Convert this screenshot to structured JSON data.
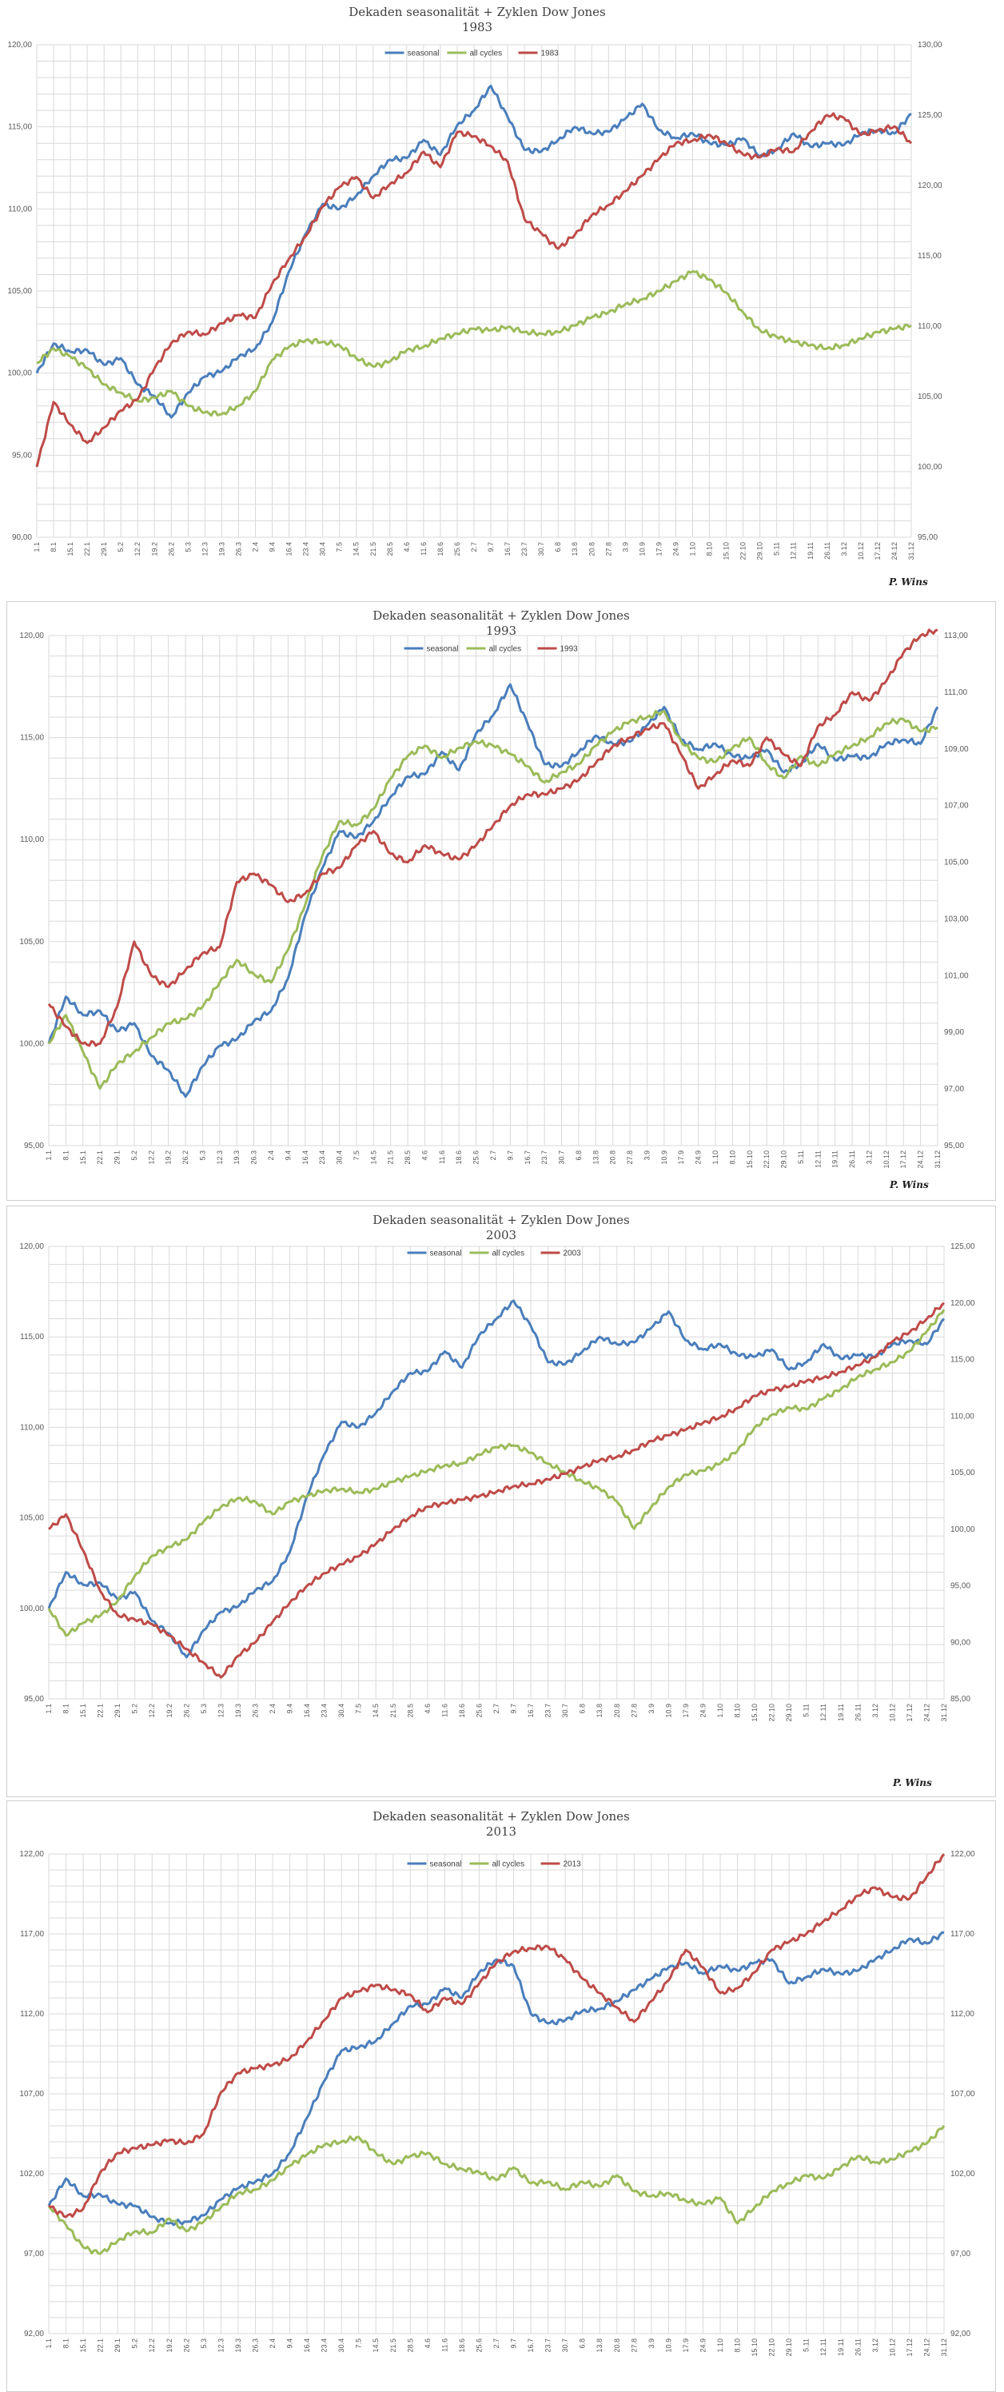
{
  "chart_data": [
    {
      "type": "line",
      "title": "Dekaden seasonalität + Zyklen Dow Jones",
      "subtitle": "1983",
      "credit": "P. Wins",
      "x": [
        "1.1",
        "8.1",
        "15.1",
        "22.1",
        "29.1",
        "5.2",
        "12.2",
        "19.2",
        "26.2",
        "5.3",
        "12.3",
        "19.3",
        "26.3",
        "2.4",
        "9.4",
        "16.4",
        "23.4",
        "30.4",
        "7.5",
        "14.5",
        "21.5",
        "28.5",
        "4.6",
        "11.6",
        "18.6",
        "25.6",
        "2.7",
        "9.7",
        "16.7",
        "23.7",
        "30.7",
        "6.8",
        "13.8",
        "20.8",
        "27.8",
        "3.9",
        "10.9",
        "17.9",
        "24.9",
        "1.10",
        "8.10",
        "15.10",
        "22.10",
        "29.10",
        "5.11",
        "12.11",
        "19.11",
        "26.11",
        "3.12",
        "10.12",
        "17.12",
        "24.12",
        "31.12"
      ],
      "ylim": [
        90,
        120
      ],
      "yticks": [
        "90,00",
        "95,00",
        "100,00",
        "105,00",
        "110,00",
        "115,00",
        "120,00"
      ],
      "y2lim": [
        95,
        130
      ],
      "y2ticks": [
        "95,00",
        "100,00",
        "105,00",
        "110,00",
        "115,00",
        "120,00",
        "125,00",
        "130,00"
      ],
      "legend": "top-center",
      "series": [
        {
          "name": "seasonal",
          "axis": "left",
          "color": "#4a7ebb",
          "values": [
            100.0,
            101.8,
            101.3,
            101.4,
            100.5,
            100.9,
            99.3,
            98.6,
            97.3,
            98.8,
            99.8,
            100.1,
            101.0,
            101.5,
            103.1,
            106.2,
            108.5,
            110.3,
            110.0,
            110.8,
            112.0,
            113.0,
            113.1,
            114.2,
            113.3,
            115.1,
            116.0,
            117.5,
            115.6,
            113.6,
            113.5,
            114.2,
            115.0,
            114.6,
            114.7,
            115.5,
            116.4,
            114.8,
            114.3,
            114.6,
            114.0,
            113.9,
            114.3,
            113.2,
            113.6,
            114.6,
            113.8,
            114.0,
            113.9,
            114.6,
            114.8,
            114.6,
            115.8
          ]
        },
        {
          "name": "all cycles",
          "axis": "left",
          "color": "#9bbb59",
          "values": [
            100.6,
            101.5,
            101.0,
            100.3,
            99.3,
            98.8,
            98.3,
            98.5,
            98.9,
            98.0,
            97.6,
            97.5,
            98.0,
            98.9,
            100.8,
            101.6,
            102.0,
            101.9,
            101.7,
            100.9,
            100.4,
            100.7,
            101.4,
            101.6,
            102.1,
            102.4,
            102.7,
            102.6,
            102.8,
            102.5,
            102.4,
            102.5,
            102.9,
            103.4,
            103.7,
            104.2,
            104.5,
            105.0,
            105.6,
            106.2,
            105.7,
            104.9,
            103.7,
            102.6,
            102.2,
            101.9,
            101.7,
            101.5,
            101.7,
            102.1,
            102.5,
            102.7,
            102.9
          ]
        },
        {
          "name": "1983",
          "axis": "right",
          "color": "#be4b48",
          "values": [
            100.0,
            104.6,
            103.0,
            101.7,
            102.8,
            104.0,
            104.8,
            107.0,
            108.8,
            109.6,
            109.4,
            110.2,
            110.8,
            110.6,
            113.0,
            114.8,
            116.4,
            118.5,
            119.9,
            120.6,
            119.1,
            120.1,
            120.9,
            122.4,
            121.3,
            123.8,
            123.5,
            122.8,
            121.7,
            117.6,
            116.6,
            115.5,
            116.5,
            117.9,
            118.6,
            119.6,
            120.7,
            121.9,
            123.0,
            123.2,
            123.6,
            123.0,
            122.2,
            122.0,
            122.6,
            122.4,
            123.8,
            125.0,
            124.8,
            123.6,
            123.9,
            124.2,
            123.0
          ]
        }
      ]
    },
    {
      "type": "line",
      "title": "Dekaden seasonalität + Zyklen Dow Jones",
      "subtitle": "1993",
      "credit": "P. Wins",
      "x": [
        "1.1",
        "8.1",
        "15.1",
        "22.1",
        "29.1",
        "5.2",
        "12.2",
        "19.2",
        "26.2",
        "5.3",
        "12.3",
        "19.3",
        "26.3",
        "2.4",
        "9.4",
        "16.4",
        "23.4",
        "30.4",
        "7.5",
        "14.5",
        "21.5",
        "28.5",
        "4.6",
        "11.6",
        "18.6",
        "25.6",
        "2.7",
        "9.7",
        "16.7",
        "23.7",
        "30.7",
        "6.8",
        "13.8",
        "20.8",
        "27.8",
        "3.9",
        "10.9",
        "17.9",
        "24.9",
        "1.10",
        "8.10",
        "15.10",
        "22.10",
        "29.10",
        "5.11",
        "12.11",
        "19.11",
        "26.11",
        "3.12",
        "10.12",
        "17.12",
        "24.12",
        "31.12"
      ],
      "ylim": [
        95,
        120
      ],
      "yticks": [
        "95,00",
        "100,00",
        "105,00",
        "110,00",
        "115,00",
        "120,00"
      ],
      "y2lim": [
        95,
        113
      ],
      "y2ticks": [
        "95,00",
        "97,00",
        "99,00",
        "101,00",
        "103,00",
        "105,00",
        "107,00",
        "109,00",
        "111,00",
        "113,00"
      ],
      "legend": "top-center",
      "series": [
        {
          "name": "seasonal",
          "axis": "left",
          "color": "#4a7ebb",
          "values": [
            100.0,
            102.3,
            101.4,
            101.6,
            100.6,
            101.0,
            99.4,
            98.7,
            97.4,
            98.9,
            99.9,
            100.2,
            101.1,
            101.6,
            103.2,
            106.3,
            108.6,
            110.4,
            110.1,
            110.9,
            112.1,
            113.1,
            113.2,
            114.3,
            113.4,
            115.2,
            116.1,
            117.6,
            115.7,
            113.7,
            113.6,
            114.3,
            115.1,
            114.7,
            114.8,
            115.6,
            116.5,
            114.9,
            114.4,
            114.7,
            114.1,
            114.0,
            114.4,
            113.3,
            113.7,
            114.7,
            113.9,
            114.1,
            114.0,
            114.7,
            114.9,
            114.7,
            116.5
          ]
        },
        {
          "name": "all cycles",
          "axis": "left",
          "color": "#9bbb59",
          "values": [
            100.0,
            101.4,
            99.6,
            97.8,
            99.0,
            99.6,
            100.3,
            101.0,
            101.2,
            101.8,
            103.0,
            104.1,
            103.4,
            103.0,
            104.6,
            106.8,
            109.2,
            110.9,
            110.7,
            111.5,
            113.0,
            114.1,
            114.6,
            114.0,
            114.5,
            114.8,
            114.6,
            114.2,
            113.6,
            112.8,
            113.3,
            113.7,
            114.6,
            115.3,
            115.8,
            116.0,
            116.3,
            114.8,
            114.0,
            113.8,
            114.5,
            115.0,
            113.7,
            113.0,
            114.1,
            113.6,
            114.2,
            114.6,
            115.0,
            115.7,
            115.9,
            115.3,
            115.5
          ]
        },
        {
          "name": "1993",
          "axis": "right",
          "color": "#be4b48",
          "values": [
            100.0,
            99.2,
            98.6,
            98.6,
            99.9,
            102.2,
            101.0,
            100.6,
            101.2,
            101.8,
            102.0,
            104.3,
            104.6,
            104.2,
            103.6,
            103.9,
            104.6,
            104.8,
            105.6,
            106.1,
            105.3,
            105.0,
            105.6,
            105.3,
            105.1,
            105.6,
            106.3,
            107.0,
            107.4,
            107.4,
            107.6,
            107.9,
            108.5,
            109.1,
            109.4,
            109.7,
            109.9,
            108.8,
            107.6,
            108.1,
            108.6,
            108.4,
            109.4,
            108.8,
            108.4,
            109.8,
            110.2,
            111.0,
            110.7,
            111.4,
            112.4,
            113.0,
            113.2
          ]
        }
      ]
    },
    {
      "type": "line",
      "title": "Dekaden seasonalität + Zyklen Dow Jones",
      "subtitle": "2003",
      "credit": "P. Wins",
      "x": [
        "1.1",
        "8.1",
        "15.1",
        "22.1",
        "29.1",
        "5.2",
        "12.2",
        "19.2",
        "26.2",
        "5.3",
        "12.3",
        "19.3",
        "26.3",
        "2.4",
        "9.4",
        "16.4",
        "23.4",
        "30.4",
        "7.5",
        "14.5",
        "21.5",
        "28.5",
        "4.6",
        "11.6",
        "18.6",
        "25.6",
        "2.7",
        "9.7",
        "16.7",
        "23.7",
        "30.7",
        "6.8",
        "13.8",
        "20.8",
        "27.8",
        "3.9",
        "10.9",
        "17.9",
        "24.9",
        "1.10",
        "8.10",
        "15.10",
        "22.10",
        "29.10",
        "5.11",
        "12.11",
        "19.11",
        "26.11",
        "3.12",
        "10.12",
        "17.12",
        "24.12",
        "31.12"
      ],
      "ylim": [
        95,
        120
      ],
      "yticks": [
        "95,00",
        "100,00",
        "105,00",
        "110,00",
        "115,00",
        "120,00"
      ],
      "y2lim": [
        85,
        125
      ],
      "y2ticks": [
        "85,00",
        "90,00",
        "95,00",
        "100,00",
        "105,00",
        "110,00",
        "115,00",
        "120,00",
        "125,00"
      ],
      "legend": "top-center",
      "series": [
        {
          "name": "seasonal",
          "axis": "left",
          "color": "#4a7ebb",
          "values": [
            100.0,
            102.0,
            101.3,
            101.4,
            100.5,
            100.9,
            99.3,
            98.6,
            97.3,
            98.8,
            99.8,
            100.1,
            101.0,
            101.5,
            103.1,
            106.2,
            108.5,
            110.3,
            110.0,
            110.8,
            112.0,
            113.0,
            113.1,
            114.2,
            113.3,
            115.1,
            116.0,
            117.0,
            115.6,
            113.6,
            113.5,
            114.2,
            115.0,
            114.6,
            114.7,
            115.5,
            116.4,
            114.8,
            114.3,
            114.6,
            114.0,
            113.9,
            114.3,
            113.2,
            113.6,
            114.6,
            113.8,
            114.0,
            113.9,
            114.6,
            114.8,
            114.6,
            116.0
          ]
        },
        {
          "name": "all cycles",
          "axis": "left",
          "color": "#9bbb59",
          "values": [
            100.0,
            98.5,
            99.2,
            99.6,
            100.4,
            101.8,
            102.9,
            103.4,
            103.8,
            104.8,
            105.6,
            106.1,
            105.9,
            105.2,
            105.9,
            106.2,
            106.5,
            106.6,
            106.4,
            106.6,
            107.0,
            107.3,
            107.6,
            107.9,
            108.0,
            108.5,
            108.9,
            109.0,
            108.6,
            108.0,
            107.5,
            107.0,
            106.6,
            105.9,
            104.4,
            105.6,
            106.7,
            107.4,
            107.6,
            108.0,
            108.7,
            110.0,
            110.7,
            111.1,
            111.0,
            111.6,
            112.1,
            112.8,
            113.2,
            113.6,
            114.2,
            115.3,
            116.5
          ]
        },
        {
          "name": "2003",
          "axis": "right",
          "color": "#be4b48",
          "values": [
            100.0,
            101.3,
            98.1,
            94.5,
            92.4,
            92.0,
            91.6,
            90.6,
            89.4,
            88.2,
            86.9,
            88.8,
            90.0,
            91.8,
            93.5,
            95.0,
            96.1,
            96.9,
            97.6,
            98.7,
            100.0,
            101.1,
            102.0,
            102.3,
            102.6,
            102.9,
            103.3,
            103.8,
            104.0,
            104.4,
            104.9,
            105.5,
            106.1,
            106.4,
            107.0,
            107.8,
            108.3,
            108.8,
            109.4,
            109.9,
            110.7,
            111.8,
            112.3,
            112.6,
            113.1,
            113.4,
            113.9,
            114.5,
            115.2,
            116.6,
            117.4,
            118.6,
            120.0
          ]
        }
      ]
    },
    {
      "type": "line",
      "title": "Dekaden seasonalität + Zyklen Dow Jones",
      "subtitle": "2013",
      "credit": "P. Wins",
      "x": [
        "1.1",
        "8.1",
        "15.1",
        "22.1",
        "29.1",
        "5.2",
        "12.2",
        "19.2",
        "26.2",
        "5.3",
        "12.3",
        "19.3",
        "26.3",
        "2.4",
        "9.4",
        "16.4",
        "23.4",
        "30.4",
        "7.5",
        "14.5",
        "21.5",
        "28.5",
        "4.6",
        "11.6",
        "18.6",
        "25.6",
        "2.7",
        "9.7",
        "16.7",
        "23.7",
        "30.7",
        "6.8",
        "13.8",
        "20.8",
        "27.8",
        "3.9",
        "10.9",
        "17.9",
        "24.9",
        "1.10",
        "8.10",
        "15.10",
        "22.10",
        "29.10",
        "5.11",
        "12.11",
        "19.11",
        "26.11",
        "3.12",
        "10.12",
        "17.12",
        "24.12",
        "31.12"
      ],
      "ylim": [
        92,
        122
      ],
      "yticks": [
        "92,00",
        "97,00",
        "102,00",
        "107,00",
        "112,00",
        "117,00",
        "122,00"
      ],
      "y2lim": [
        92,
        122
      ],
      "y2ticks": [
        "92,00",
        "97,00",
        "102,00",
        "107,00",
        "112,00",
        "117,00",
        "122,00"
      ],
      "legend": "top-center",
      "series": [
        {
          "name": "seasonal",
          "axis": "left",
          "color": "#4a7ebb",
          "values": [
            100.0,
            101.7,
            100.6,
            100.7,
            100.1,
            100.0,
            99.3,
            98.9,
            99.0,
            99.4,
            100.4,
            101.1,
            101.5,
            102.0,
            103.3,
            105.5,
            107.8,
            109.7,
            109.9,
            110.3,
            111.4,
            112.5,
            112.6,
            113.6,
            113.0,
            114.6,
            115.4,
            115.0,
            112.0,
            111.4,
            111.6,
            112.2,
            112.3,
            112.8,
            113.5,
            114.2,
            114.9,
            115.2,
            114.5,
            115.0,
            114.7,
            115.2,
            115.4,
            113.9,
            114.3,
            114.8,
            114.5,
            114.7,
            115.4,
            116.0,
            116.7,
            116.4,
            117.1
          ]
        },
        {
          "name": "all cycles",
          "axis": "left",
          "color": "#9bbb59",
          "values": [
            100.0,
            98.8,
            97.4,
            97.0,
            97.8,
            98.4,
            98.3,
            99.2,
            98.4,
            99.0,
            99.9,
            100.8,
            101.0,
            101.6,
            102.5,
            103.2,
            103.8,
            104.0,
            104.3,
            103.3,
            102.6,
            103.1,
            103.3,
            102.6,
            102.3,
            102.1,
            101.6,
            102.4,
            101.4,
            101.5,
            101.0,
            101.5,
            101.2,
            101.9,
            100.9,
            100.6,
            100.8,
            100.3,
            100.1,
            100.5,
            98.9,
            99.9,
            100.9,
            101.4,
            101.9,
            101.7,
            102.4,
            103.1,
            102.7,
            102.9,
            103.4,
            103.9,
            105.0
          ]
        },
        {
          "name": "2013",
          "axis": "right",
          "color": "#be4b48",
          "values": [
            100.0,
            99.3,
            99.8,
            102.1,
            103.3,
            103.6,
            103.8,
            104.1,
            103.9,
            104.5,
            107.1,
            108.3,
            108.6,
            108.8,
            109.2,
            110.3,
            111.6,
            113.0,
            113.4,
            113.8,
            113.5,
            113.2,
            112.1,
            113.0,
            112.6,
            113.9,
            115.2,
            115.9,
            116.1,
            116.2,
            115.4,
            114.2,
            113.3,
            112.4,
            111.5,
            112.8,
            114.1,
            116.0,
            114.9,
            113.3,
            113.6,
            114.6,
            116.0,
            116.5,
            117.0,
            117.8,
            118.5,
            119.4,
            119.9,
            119.3,
            119.2,
            120.6,
            122.0
          ]
        }
      ]
    }
  ]
}
